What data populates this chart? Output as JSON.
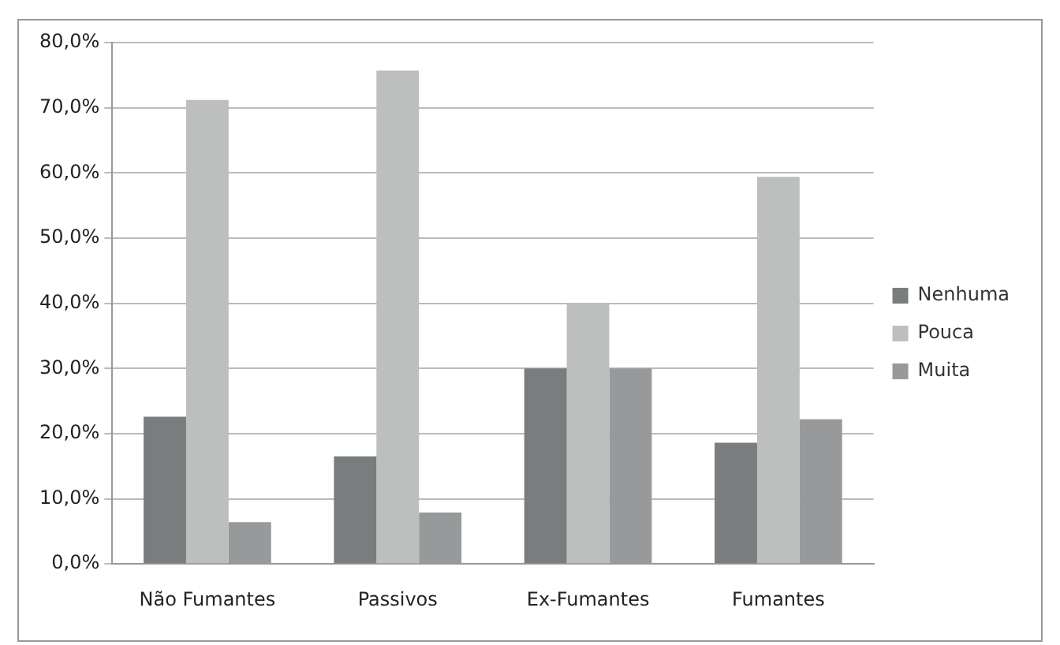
{
  "chart_data": {
    "type": "bar",
    "categories": [
      "Não Fumantes",
      "Passivos",
      "Ex-Fumantes",
      "Fumantes"
    ],
    "series": [
      {
        "name": "Nenhuma",
        "color": "#7a7d7d",
        "values": [
          22.6,
          16.5,
          30,
          18.6
        ]
      },
      {
        "name": "Pouca",
        "color": "#bdbfbf",
        "values": [
          71.2,
          75.7,
          40,
          59.4
        ]
      },
      {
        "name": "Muita",
        "color": "#97999a",
        "values": [
          6.4,
          7.9,
          30,
          22.2
        ]
      }
    ],
    "ylim": [
      0,
      80
    ],
    "yticks": [
      {
        "value": 0,
        "label": "0,0%"
      },
      {
        "value": 10,
        "label": "10,0%"
      },
      {
        "value": 20,
        "label": "20,0%"
      },
      {
        "value": 30,
        "label": "30,0%"
      },
      {
        "value": 40,
        "label": "40,0%"
      },
      {
        "value": 50,
        "label": "50,0%"
      },
      {
        "value": 60,
        "label": "60,0%"
      },
      {
        "value": 70,
        "label": "70,0%"
      },
      {
        "value": 80,
        "label": "80,0%"
      }
    ],
    "grid": "y",
    "legend": "right"
  }
}
